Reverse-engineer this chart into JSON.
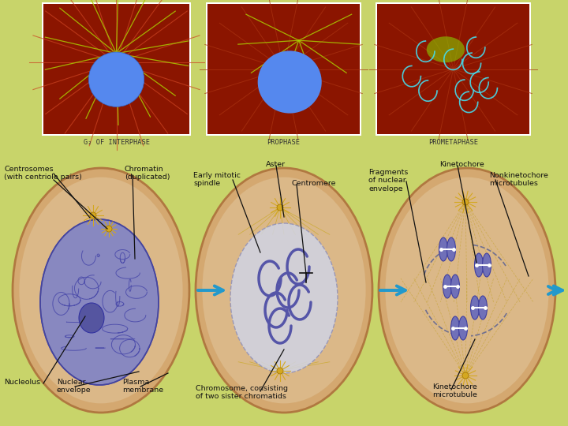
{
  "background_color": "#c8d46a",
  "photo_labels": [
    "G₂ OF INTERPHASE",
    "PROPHASE",
    "PROMETAPHASE"
  ],
  "diagram_label_fontsize": 7.0,
  "photo_label_fontsize": 6.5,
  "tan_cell": "#d4a87a",
  "tan_dark": "#b8905a",
  "tan_inner": "#c89060",
  "nucleus_blue": "#8080b8",
  "nucleus_light": "#c8cce0",
  "chromatin_color": "#6060a8",
  "arrow_blue": "#2299cc",
  "label_color": "#111111",
  "gold_centrosome": "#d4a820",
  "photo_bg": "#8b2200"
}
